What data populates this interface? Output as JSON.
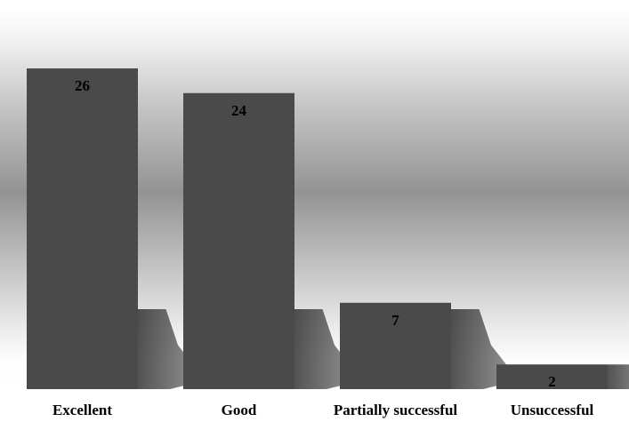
{
  "chart_data": {
    "type": "bar",
    "categories": [
      "Excellent",
      "Good",
      "Partially successful",
      "Unsuccessful"
    ],
    "values": [
      26,
      24,
      7,
      2
    ],
    "ylim": [
      0,
      26
    ],
    "grid": false,
    "data_labels": true,
    "colors": {
      "bar": "#4a4a4a",
      "shadow": "#2e2e2e",
      "label": "#000000"
    }
  }
}
